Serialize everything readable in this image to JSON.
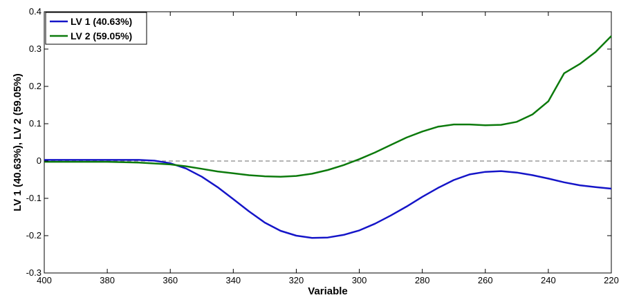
{
  "chart_data": {
    "type": "line",
    "xlabel": "Variable",
    "ylabel": "LV 1 (40.63%), LV 2 (59.05%)",
    "xlim": [
      400,
      220
    ],
    "ylim": [
      -0.3,
      0.4
    ],
    "x_reversed": true,
    "x_ticks": [
      "400",
      "380",
      "360",
      "340",
      "320",
      "300",
      "280",
      "260",
      "240",
      "220"
    ],
    "y_ticks": [
      "-0.3",
      "-0.2",
      "-0.1",
      "0",
      "0.1",
      "0.2",
      "0.3",
      "0.4"
    ],
    "grid": false,
    "zero_line": "dashed gray",
    "legend_position": "top-left",
    "series": [
      {
        "name": "LV 1 (40.63%)",
        "color": "#1515c8",
        "x": [
          400,
          390,
          380,
          370,
          365,
          360,
          355,
          350,
          345,
          340,
          335,
          330,
          325,
          320,
          315,
          310,
          305,
          300,
          295,
          290,
          285,
          280,
          275,
          270,
          265,
          260,
          255,
          250,
          245,
          240,
          235,
          230,
          225,
          220
        ],
        "y": [
          0.003,
          0.003,
          0.003,
          0.003,
          0.001,
          -0.006,
          -0.02,
          -0.042,
          -0.07,
          -0.102,
          -0.135,
          -0.165,
          -0.187,
          -0.2,
          -0.206,
          -0.205,
          -0.198,
          -0.186,
          -0.168,
          -0.146,
          -0.122,
          -0.096,
          -0.072,
          -0.051,
          -0.036,
          -0.029,
          -0.027,
          -0.031,
          -0.038,
          -0.047,
          -0.057,
          -0.065,
          -0.07,
          -0.074
        ]
      },
      {
        "name": "LV 2 (59.05%)",
        "color": "#0c7a0c",
        "x": [
          400,
          390,
          380,
          370,
          360,
          355,
          350,
          345,
          340,
          335,
          330,
          325,
          320,
          315,
          310,
          305,
          300,
          295,
          290,
          285,
          280,
          275,
          270,
          265,
          260,
          255,
          250,
          245,
          240,
          235,
          230,
          225,
          220
        ],
        "y": [
          -0.002,
          -0.002,
          -0.002,
          -0.004,
          -0.009,
          -0.014,
          -0.021,
          -0.028,
          -0.033,
          -0.038,
          -0.041,
          -0.042,
          -0.04,
          -0.034,
          -0.024,
          -0.011,
          0.005,
          0.023,
          0.043,
          0.063,
          0.079,
          0.092,
          0.098,
          0.098,
          0.096,
          0.097,
          0.105,
          0.125,
          0.16,
          0.235,
          0.26,
          0.292,
          0.335
        ]
      }
    ]
  }
}
